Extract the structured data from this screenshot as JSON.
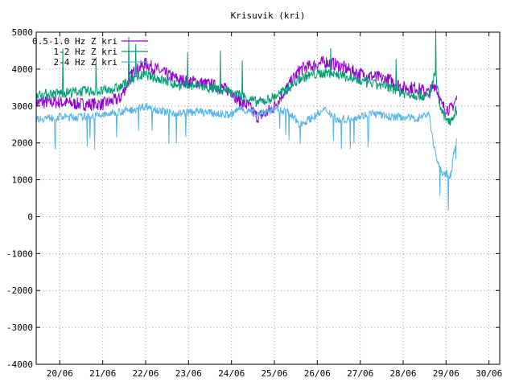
{
  "chart_data": {
    "type": "line",
    "title": "Krisuvik (kri)",
    "xlabel": "",
    "ylabel": "",
    "ylim": [
      -4000,
      5000
    ],
    "yticks": [
      -4000,
      -3000,
      -2000,
      -1000,
      0,
      1000,
      2000,
      3000,
      4000,
      5000
    ],
    "xlim": [
      19.45,
      30.25
    ],
    "xtick_positions": [
      20,
      21,
      22,
      23,
      24,
      25,
      26,
      27,
      28,
      29,
      30
    ],
    "xtick_labels": [
      "20/06",
      "21/06",
      "22/06",
      "23/06",
      "24/06",
      "25/06",
      "26/06",
      "27/06",
      "28/06",
      "29/06",
      "30/06"
    ],
    "grid": true,
    "legend_position": "top-left",
    "series": [
      {
        "name": "0.5-1.0 Hz Z kri",
        "color": "#9400d3",
        "x": [
          19.45,
          20.0,
          20.5,
          21.0,
          21.4,
          21.7,
          22.0,
          22.4,
          22.8,
          23.2,
          23.6,
          24.0,
          24.2,
          24.4,
          24.6,
          24.8,
          25.0,
          25.3,
          25.6,
          25.9,
          26.2,
          26.5,
          26.9,
          27.3,
          27.7,
          28.0,
          28.3,
          28.6,
          28.75,
          28.9,
          29.1,
          29.25
        ],
        "values": [
          3100,
          3100,
          3050,
          3050,
          3200,
          3900,
          4150,
          3900,
          3700,
          3650,
          3550,
          3400,
          3100,
          3000,
          2700,
          2800,
          3000,
          3500,
          4000,
          4100,
          4200,
          4100,
          3900,
          3800,
          3700,
          3500,
          3500,
          3350,
          3600,
          3000,
          2900,
          3200
        ]
      },
      {
        "name": "1-2 Hz Z kri",
        "color": "#009e73",
        "x": [
          19.45,
          20.0,
          20.5,
          21.0,
          21.4,
          21.7,
          22.0,
          22.4,
          22.8,
          23.2,
          23.6,
          24.0,
          24.2,
          24.4,
          24.6,
          24.8,
          25.0,
          25.3,
          25.6,
          25.9,
          26.2,
          26.5,
          26.9,
          27.3,
          27.7,
          28.0,
          28.3,
          28.6,
          28.75,
          28.9,
          29.1,
          29.25
        ],
        "values": [
          3300,
          3350,
          3400,
          3400,
          3500,
          3750,
          3850,
          3700,
          3550,
          3550,
          3450,
          3350,
          3300,
          3200,
          3100,
          3150,
          3250,
          3450,
          3750,
          3850,
          3900,
          3850,
          3700,
          3600,
          3500,
          3350,
          3300,
          3250,
          3900,
          2800,
          2600,
          2900
        ]
      },
      {
        "name": "2-4 Hz Z kri",
        "color": "#56b4e9",
        "x": [
          19.45,
          20.0,
          20.5,
          21.0,
          21.4,
          21.7,
          22.0,
          22.4,
          22.8,
          23.2,
          23.6,
          24.0,
          24.2,
          24.4,
          24.6,
          24.8,
          25.0,
          25.3,
          25.6,
          25.9,
          26.2,
          26.5,
          26.9,
          27.3,
          27.7,
          28.0,
          28.3,
          28.6,
          28.75,
          28.9,
          29.1,
          29.25
        ],
        "values": [
          2650,
          2700,
          2700,
          2750,
          2850,
          2900,
          3000,
          2850,
          2800,
          2850,
          2800,
          2750,
          2950,
          2850,
          2800,
          2850,
          2900,
          2850,
          2500,
          2700,
          2900,
          2600,
          2700,
          2800,
          2700,
          2700,
          2650,
          2800,
          1700,
          1200,
          1100,
          2200
        ]
      }
    ]
  }
}
